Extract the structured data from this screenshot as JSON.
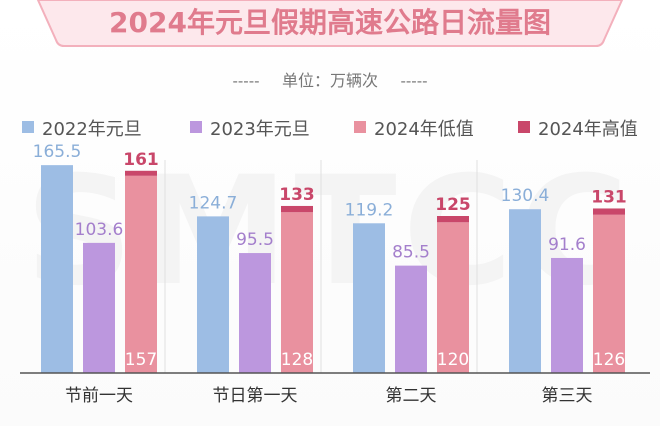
{
  "title": "2024年元旦假期高速公路日流量图",
  "unit_line": {
    "dashes_left": "-----",
    "label": "单位：万辆次",
    "dashes_right": "-----"
  },
  "watermark": "SMTCC",
  "colors": {
    "title_bg": "#fde8ec",
    "title_border": "#f3b0bc",
    "title_text": "#e07b8d",
    "axis": "#555555",
    "divider": "#e0e0e0"
  },
  "legend": [
    {
      "label": "2022年元旦",
      "color": "#9dbde4"
    },
    {
      "label": "2023年元旦",
      "color": "#bc97de"
    },
    {
      "label": "2024年低值",
      "color": "#e9919f"
    },
    {
      "label": "2024年高值",
      "color": "#c9476a"
    }
  ],
  "chart_data": {
    "type": "bar",
    "title": "2024年元旦假期高速公路日流量图",
    "unit": "万辆次",
    "categories": [
      "节前一天",
      "节日第一天",
      "第二天",
      "第三天"
    ],
    "series": [
      {
        "name": "2022年元旦",
        "values": [
          165.5,
          124.7,
          119.2,
          130.4
        ],
        "color": "#9dbde4",
        "label_color": "#8aaed8"
      },
      {
        "name": "2023年元旦",
        "values": [
          103.6,
          95.5,
          85.5,
          91.6
        ],
        "color": "#bc97de",
        "label_color": "#a47fcc"
      },
      {
        "name": "2024年低值",
        "values": [
          157,
          128,
          120,
          126
        ],
        "color": "#e9919f",
        "label_color": "#ffffff"
      },
      {
        "name": "2024年高值",
        "values": [
          161,
          133,
          125,
          131
        ],
        "color": "#c9476a",
        "label_color": "#c9476a"
      }
    ],
    "stacked_2024": true,
    "ylim": [
      0,
      180
    ],
    "legend_position": "top",
    "grid": false
  }
}
